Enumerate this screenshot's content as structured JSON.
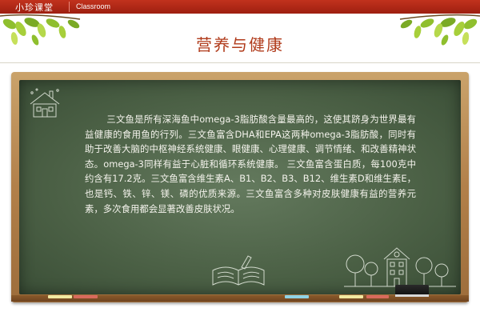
{
  "header": {
    "brand": "小珍课堂",
    "section": "Classroom"
  },
  "page": {
    "title": "营养与健康"
  },
  "board": {
    "text": "三文鱼是所有深海鱼中omega-3脂肪酸含量最高的，这使其跻身为世界最有益健康的食用鱼的行列。三文鱼富含DHA和EPA这两种omega-3脂肪酸，同时有助于改善大脑的中枢神经系统健康、眼健康、心理健康、调节情绪、和改善精神状态。omega-3同样有益于心脏和循环系统健康。 三文鱼富含蛋白质，每100克中约含有17.2克。三文鱼富含维生素A、B1、B2、B3、B12、维生素D和维生素E，也是钙、铁、锌、镁、磷的优质来源。三文鱼富含多种对皮肤健康有益的营养元素，多次食用都会显著改善皮肤状况。"
  },
  "colors": {
    "topbar": "#b0271a",
    "title": "#b03a1a",
    "board": "#4b6045",
    "frame": "#b2804a",
    "chalk_yellow": "#f2e9a1",
    "chalk_red": "#d86a5c",
    "chalk_blue": "#8fd2e6"
  }
}
